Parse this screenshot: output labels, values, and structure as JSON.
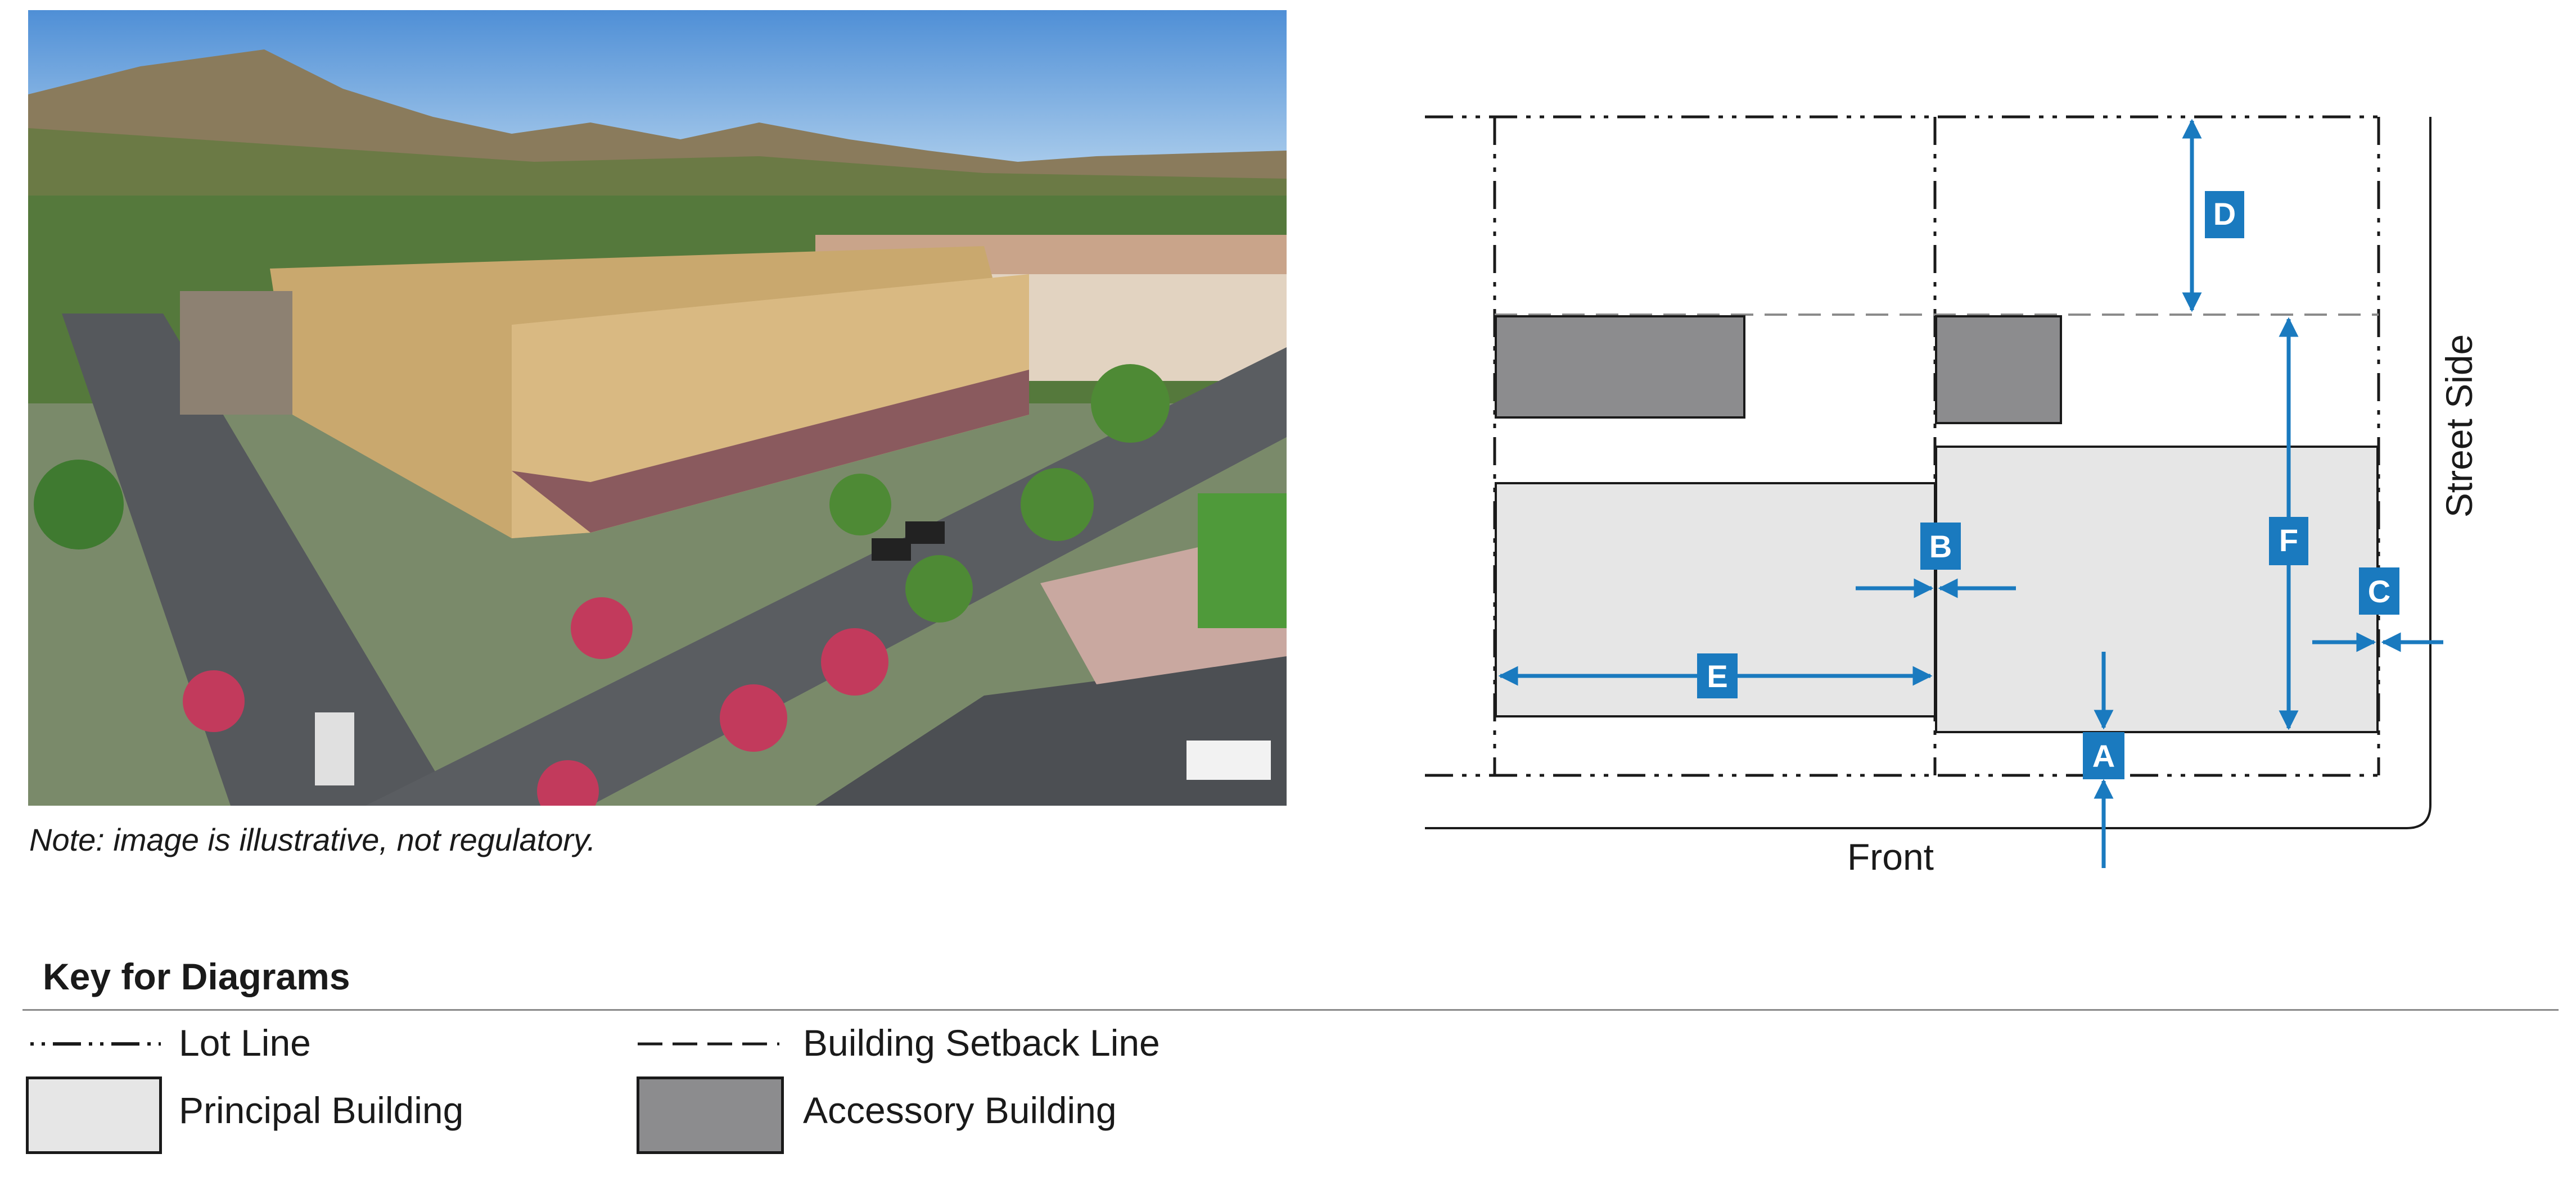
{
  "photo": {
    "caption": "Note: image is illustrative, not regulatory."
  },
  "diagram": {
    "labels": {
      "front": "Front",
      "street_side": "Street Side"
    },
    "markers": [
      "A",
      "B",
      "C",
      "D",
      "E",
      "F"
    ],
    "colors": {
      "marker": "#1a7abf",
      "principal_fill": "#e6e6e6",
      "accessory_fill": "#8c8c8e",
      "line": "#1a1a1a"
    }
  },
  "key": {
    "title": "Key for Diagrams",
    "items": {
      "lot_line": "Lot Line",
      "setback_line": "Building Setback Line",
      "principal": "Principal Building",
      "accessory": "Accessory Building"
    }
  }
}
